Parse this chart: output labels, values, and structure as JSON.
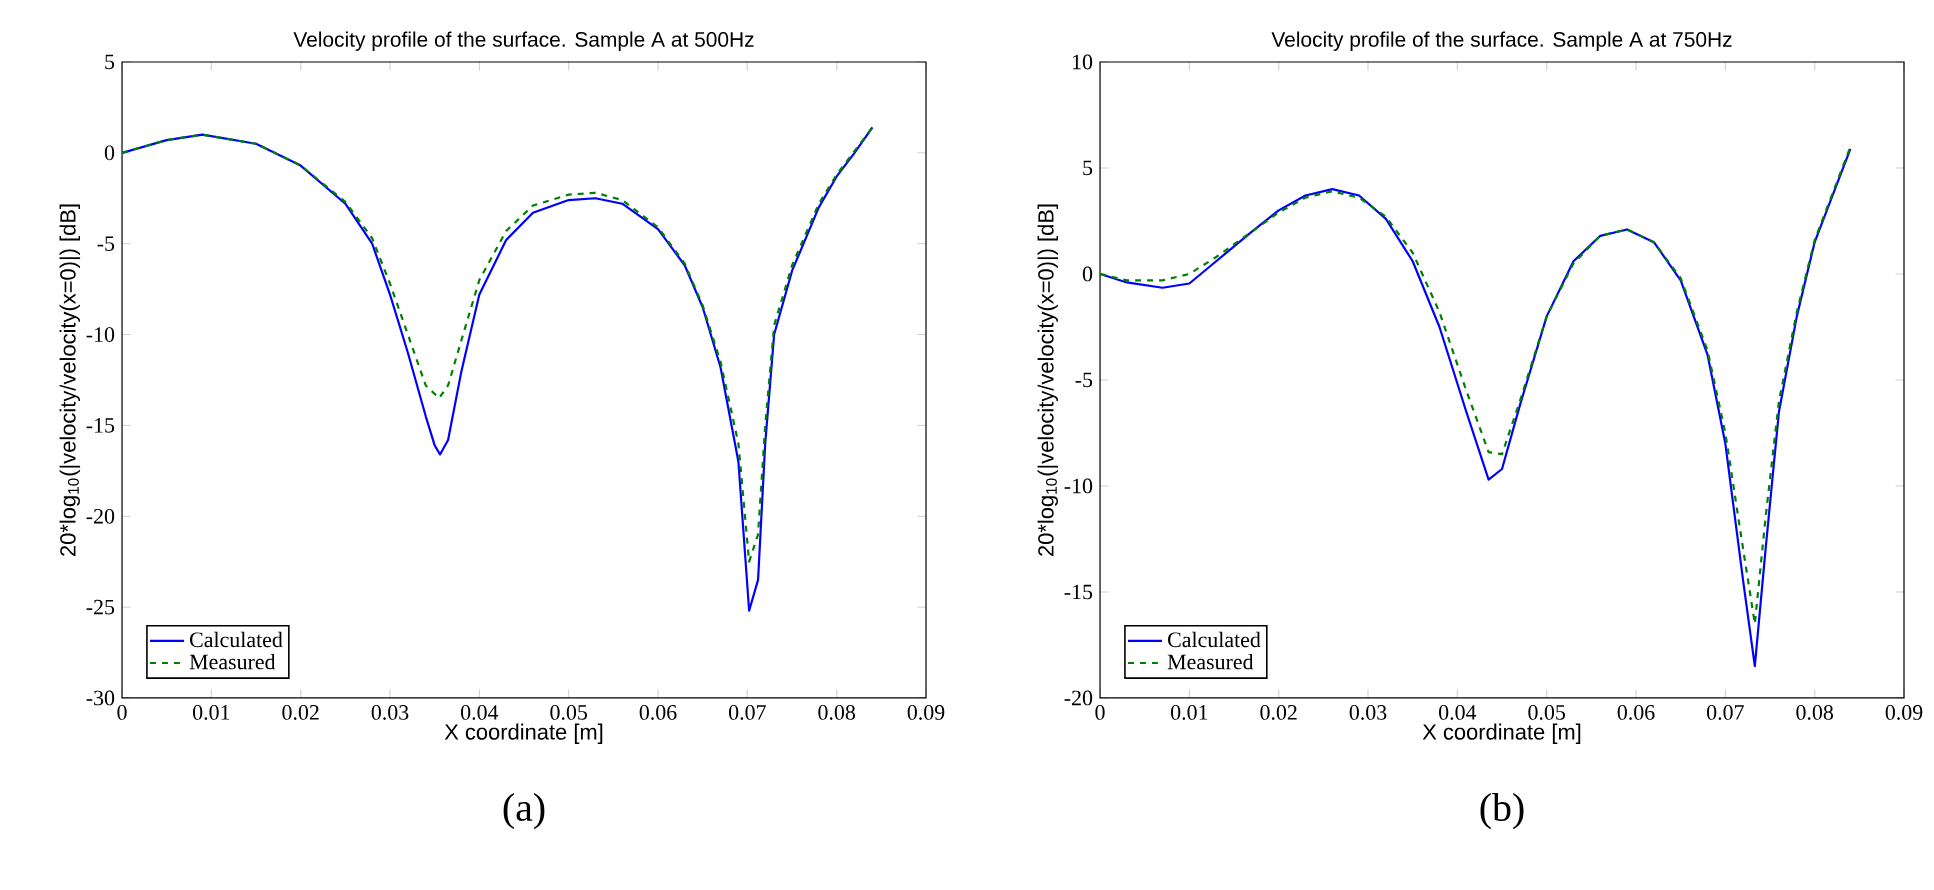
{
  "chart_data": [
    {
      "type": "line",
      "title": "Velocity profile of the surface. Sample A at 500Hz",
      "xlabel": "X coordinate [m]",
      "ylabel": "20*log$_{10}$(|velocity/velocity(x=0)|) [dB]",
      "xlim": [
        0,
        0.09
      ],
      "ylim": [
        -30,
        5
      ],
      "xticks": [
        0,
        0.01,
        0.02,
        0.03,
        0.04,
        0.05,
        0.06,
        0.07,
        0.08,
        0.09
      ],
      "yticks": [
        -30,
        -25,
        -20,
        -15,
        -10,
        -5,
        0,
        5
      ],
      "legend": "bottom left",
      "annotations": [
        "(a)"
      ],
      "series": [
        {
          "name": "Calculated",
          "color": "#0000ff",
          "line_style": "solid",
          "x": [
            0,
            0.005,
            0.009,
            0.015,
            0.02,
            0.025,
            0.028,
            0.03,
            0.032,
            0.034,
            0.035,
            0.0356,
            0.0365,
            0.038,
            0.04,
            0.043,
            0.046,
            0.05,
            0.053,
            0.056,
            0.06,
            0.063,
            0.065,
            0.067,
            0.069,
            0.0702,
            0.0712,
            0.072,
            0.073,
            0.075,
            0.078,
            0.08,
            0.082,
            0.084
          ],
          "values": [
            0,
            0.7,
            1.0,
            0.5,
            -0.7,
            -2.8,
            -5,
            -7.8,
            -11,
            -14.5,
            -16.1,
            -16.6,
            -15.8,
            -12,
            -7.8,
            -4.8,
            -3.3,
            -2.6,
            -2.5,
            -2.8,
            -4.2,
            -6.2,
            -8.5,
            -11.8,
            -17,
            -25.2,
            -23.5,
            -16,
            -10,
            -6.5,
            -3,
            -1.3,
            0,
            1.4
          ]
        },
        {
          "name": "Measured",
          "color": "#008000",
          "line_style": "dashed",
          "x": [
            0,
            0.005,
            0.009,
            0.015,
            0.02,
            0.025,
            0.028,
            0.03,
            0.032,
            0.034,
            0.0355,
            0.0365,
            0.038,
            0.04,
            0.043,
            0.046,
            0.05,
            0.053,
            0.056,
            0.06,
            0.063,
            0.065,
            0.067,
            0.069,
            0.0702,
            0.0712,
            0.072,
            0.073,
            0.075,
            0.078,
            0.08,
            0.082,
            0.084
          ],
          "values": [
            0,
            0.7,
            1.0,
            0.5,
            -0.7,
            -2.7,
            -4.7,
            -7.2,
            -10,
            -12.8,
            -13.5,
            -12.8,
            -10.3,
            -7,
            -4.3,
            -2.9,
            -2.3,
            -2.2,
            -2.6,
            -4.1,
            -6.1,
            -8.4,
            -11.5,
            -16,
            -22.5,
            -21,
            -15,
            -9.5,
            -6.2,
            -2.8,
            -1.2,
            0.1,
            1.4
          ]
        }
      ]
    },
    {
      "type": "line",
      "title": "Velocity profile of the surface. Sample A at 750Hz",
      "xlabel": "X coordinate [m]",
      "ylabel": "20*log$_{10}$(|velocity/velocity(x=0)|) [dB]",
      "xlim": [
        0,
        0.09
      ],
      "ylim": [
        -20,
        10
      ],
      "xticks": [
        0,
        0.01,
        0.02,
        0.03,
        0.04,
        0.05,
        0.06,
        0.07,
        0.08,
        0.09
      ],
      "yticks": [
        -20,
        -15,
        -10,
        -5,
        0,
        5,
        10
      ],
      "legend": "bottom left",
      "annotations": [
        "(b)"
      ],
      "series": [
        {
          "name": "Calculated",
          "color": "#0000ff",
          "line_style": "solid",
          "x": [
            0,
            0.003,
            0.007,
            0.01,
            0.013,
            0.017,
            0.02,
            0.023,
            0.026,
            0.029,
            0.032,
            0.035,
            0.038,
            0.041,
            0.0435,
            0.045,
            0.047,
            0.05,
            0.053,
            0.056,
            0.059,
            0.062,
            0.065,
            0.068,
            0.07,
            0.072,
            0.0733,
            0.0745,
            0.076,
            0.078,
            0.08,
            0.082,
            0.084
          ],
          "values": [
            0,
            -0.4,
            -0.65,
            -0.45,
            0.6,
            2.0,
            3.0,
            3.7,
            4.0,
            3.7,
            2.6,
            0.6,
            -2.5,
            -6.5,
            -9.7,
            -9.2,
            -6.2,
            -2,
            0.6,
            1.8,
            2.1,
            1.5,
            -0.3,
            -3.8,
            -8,
            -14.5,
            -18.5,
            -13,
            -6.5,
            -2,
            1.5,
            3.7,
            5.9
          ]
        },
        {
          "name": "Measured",
          "color": "#008000",
          "line_style": "dashed",
          "x": [
            0,
            0.003,
            0.007,
            0.01,
            0.013,
            0.017,
            0.02,
            0.023,
            0.026,
            0.029,
            0.032,
            0.035,
            0.038,
            0.041,
            0.0435,
            0.045,
            0.047,
            0.05,
            0.053,
            0.056,
            0.059,
            0.062,
            0.065,
            0.068,
            0.07,
            0.072,
            0.0733,
            0.0745,
            0.076,
            0.078,
            0.08,
            0.082,
            0.084
          ],
          "values": [
            0,
            -0.3,
            -0.3,
            0,
            0.8,
            2.0,
            2.9,
            3.6,
            3.9,
            3.6,
            2.7,
            1.0,
            -1.8,
            -5.5,
            -8.4,
            -8.5,
            -6,
            -2,
            0.5,
            1.8,
            2.1,
            1.5,
            -0.2,
            -3.6,
            -7.5,
            -13,
            -16.5,
            -11.5,
            -6,
            -1.8,
            1.6,
            3.8,
            6.0
          ]
        }
      ]
    }
  ]
}
